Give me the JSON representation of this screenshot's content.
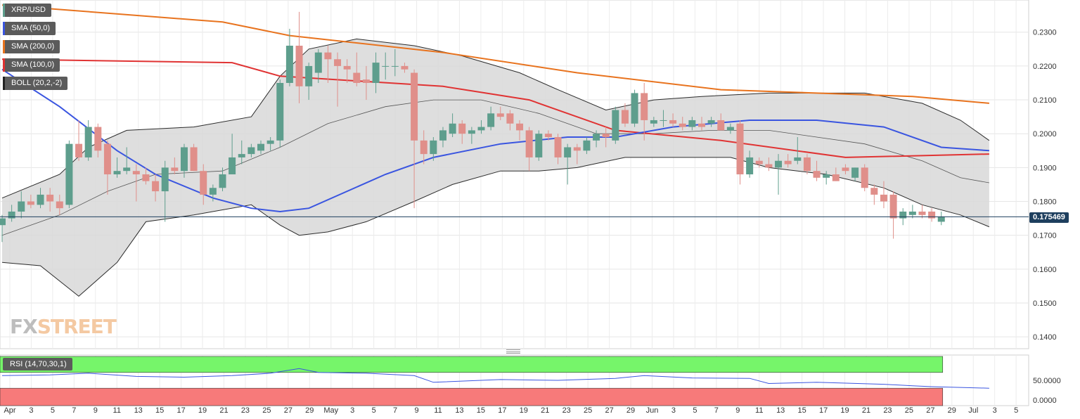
{
  "legend": {
    "symbol": "XRP/USD",
    "sma50": "SMA (50,0)",
    "sma200": "SMA (200,0)",
    "sma100": "SMA (100,0)",
    "boll": "BOLL (20,2,-2)"
  },
  "rsi_label": "RSI (14,70,30,1)",
  "price_tag": "0.175469",
  "watermark": {
    "fx": "FX",
    "street": "STREET"
  },
  "colors": {
    "up": "#5e9e8d",
    "down": "#e08f8a",
    "up_dark": "#2e7d64",
    "down_dark": "#d95b52",
    "sma50": "#3a55e0",
    "sma100": "#e03333",
    "sma200": "#e8731e",
    "boll_fill": "#d8d8d8",
    "rsi_line": "#3a55e0",
    "rsi_overbought": "#76f56a",
    "rsi_oversold": "#f77a7a"
  },
  "chart_data": {
    "type": "candlestick",
    "symbol": "XRP/USD",
    "y_ticks": [
      "0.2300",
      "0.2200",
      "0.2100",
      "0.2000",
      "0.1900",
      "0.1800",
      "0.1700",
      "0.1600",
      "0.1500",
      "0.1400"
    ],
    "ylim": [
      0.1365,
      0.2395
    ],
    "current_price": 0.175469,
    "x_labels": [
      "Apr",
      "3",
      "5",
      "7",
      "9",
      "11",
      "13",
      "15",
      "17",
      "19",
      "21",
      "23",
      "25",
      "27",
      "29",
      "May",
      "3",
      "5",
      "7",
      "9",
      "11",
      "13",
      "15",
      "17",
      "19",
      "21",
      "23",
      "25",
      "27",
      "29",
      "Jun",
      "3",
      "5",
      "7",
      "9",
      "11",
      "13",
      "15",
      "17",
      "19",
      "21",
      "23",
      "25",
      "27",
      "29",
      "Jul",
      "3",
      "5"
    ],
    "candles": [
      {
        "o": 0.173,
        "h": 0.176,
        "l": 0.168,
        "c": 0.175
      },
      {
        "o": 0.175,
        "h": 0.179,
        "l": 0.174,
        "c": 0.177
      },
      {
        "o": 0.177,
        "h": 0.183,
        "l": 0.175,
        "c": 0.18
      },
      {
        "o": 0.18,
        "h": 0.182,
        "l": 0.178,
        "c": 0.179
      },
      {
        "o": 0.179,
        "h": 0.184,
        "l": 0.178,
        "c": 0.182
      },
      {
        "o": 0.182,
        "h": 0.184,
        "l": 0.177,
        "c": 0.18
      },
      {
        "o": 0.18,
        "h": 0.182,
        "l": 0.176,
        "c": 0.178
      },
      {
        "o": 0.179,
        "h": 0.198,
        "l": 0.178,
        "c": 0.197
      },
      {
        "o": 0.197,
        "h": 0.204,
        "l": 0.192,
        "c": 0.193
      },
      {
        "o": 0.193,
        "h": 0.204,
        "l": 0.192,
        "c": 0.202
      },
      {
        "o": 0.202,
        "h": 0.203,
        "l": 0.193,
        "c": 0.195
      },
      {
        "o": 0.197,
        "h": 0.198,
        "l": 0.182,
        "c": 0.188
      },
      {
        "o": 0.188,
        "h": 0.193,
        "l": 0.187,
        "c": 0.189
      },
      {
        "o": 0.189,
        "h": 0.196,
        "l": 0.188,
        "c": 0.19
      },
      {
        "o": 0.189,
        "h": 0.191,
        "l": 0.18,
        "c": 0.188
      },
      {
        "o": 0.188,
        "h": 0.19,
        "l": 0.185,
        "c": 0.186
      },
      {
        "o": 0.186,
        "h": 0.188,
        "l": 0.18,
        "c": 0.183
      },
      {
        "o": 0.183,
        "h": 0.192,
        "l": 0.174,
        "c": 0.19
      },
      {
        "o": 0.19,
        "h": 0.193,
        "l": 0.188,
        "c": 0.189
      },
      {
        "o": 0.189,
        "h": 0.197,
        "l": 0.187,
        "c": 0.196
      },
      {
        "o": 0.196,
        "h": 0.197,
        "l": 0.189,
        "c": 0.189
      },
      {
        "o": 0.189,
        "h": 0.191,
        "l": 0.179,
        "c": 0.182
      },
      {
        "o": 0.182,
        "h": 0.185,
        "l": 0.18,
        "c": 0.184
      },
      {
        "o": 0.184,
        "h": 0.19,
        "l": 0.183,
        "c": 0.188
      },
      {
        "o": 0.188,
        "h": 0.2,
        "l": 0.188,
        "c": 0.193
      },
      {
        "o": 0.193,
        "h": 0.198,
        "l": 0.191,
        "c": 0.194
      },
      {
        "o": 0.194,
        "h": 0.197,
        "l": 0.193,
        "c": 0.196
      },
      {
        "o": 0.195,
        "h": 0.198,
        "l": 0.194,
        "c": 0.197
      },
      {
        "o": 0.197,
        "h": 0.199,
        "l": 0.195,
        "c": 0.198
      },
      {
        "o": 0.198,
        "h": 0.216,
        "l": 0.196,
        "c": 0.215
      },
      {
        "o": 0.215,
        "h": 0.231,
        "l": 0.214,
        "c": 0.226
      },
      {
        "o": 0.226,
        "h": 0.236,
        "l": 0.209,
        "c": 0.214
      },
      {
        "o": 0.214,
        "h": 0.221,
        "l": 0.21,
        "c": 0.22
      },
      {
        "o": 0.218,
        "h": 0.225,
        "l": 0.215,
        "c": 0.224
      },
      {
        "o": 0.224,
        "h": 0.226,
        "l": 0.215,
        "c": 0.222
      },
      {
        "o": 0.222,
        "h": 0.224,
        "l": 0.208,
        "c": 0.22
      },
      {
        "o": 0.22,
        "h": 0.222,
        "l": 0.215,
        "c": 0.219
      },
      {
        "o": 0.218,
        "h": 0.224,
        "l": 0.214,
        "c": 0.215
      },
      {
        "o": 0.216,
        "h": 0.22,
        "l": 0.21,
        "c": 0.215
      },
      {
        "o": 0.215,
        "h": 0.224,
        "l": 0.212,
        "c": 0.221
      },
      {
        "o": 0.22,
        "h": 0.224,
        "l": 0.216,
        "c": 0.22
      },
      {
        "o": 0.22,
        "h": 0.225,
        "l": 0.217,
        "c": 0.22
      },
      {
        "o": 0.22,
        "h": 0.221,
        "l": 0.218,
        "c": 0.219
      },
      {
        "o": 0.218,
        "h": 0.219,
        "l": 0.178,
        "c": 0.198
      },
      {
        "o": 0.198,
        "h": 0.201,
        "l": 0.191,
        "c": 0.194
      },
      {
        "o": 0.194,
        "h": 0.199,
        "l": 0.192,
        "c": 0.198
      },
      {
        "o": 0.198,
        "h": 0.202,
        "l": 0.196,
        "c": 0.201
      },
      {
        "o": 0.2,
        "h": 0.206,
        "l": 0.199,
        "c": 0.203
      },
      {
        "o": 0.203,
        "h": 0.204,
        "l": 0.197,
        "c": 0.2
      },
      {
        "o": 0.2,
        "h": 0.202,
        "l": 0.197,
        "c": 0.201
      },
      {
        "o": 0.201,
        "h": 0.204,
        "l": 0.2,
        "c": 0.202
      },
      {
        "o": 0.202,
        "h": 0.208,
        "l": 0.201,
        "c": 0.206
      },
      {
        "o": 0.206,
        "h": 0.208,
        "l": 0.204,
        "c": 0.205
      },
      {
        "o": 0.206,
        "h": 0.207,
        "l": 0.201,
        "c": 0.203
      },
      {
        "o": 0.203,
        "h": 0.204,
        "l": 0.198,
        "c": 0.201
      },
      {
        "o": 0.201,
        "h": 0.202,
        "l": 0.189,
        "c": 0.193
      },
      {
        "o": 0.193,
        "h": 0.201,
        "l": 0.192,
        "c": 0.2
      },
      {
        "o": 0.2,
        "h": 0.201,
        "l": 0.198,
        "c": 0.199
      },
      {
        "o": 0.199,
        "h": 0.2,
        "l": 0.191,
        "c": 0.193
      },
      {
        "o": 0.193,
        "h": 0.197,
        "l": 0.185,
        "c": 0.196
      },
      {
        "o": 0.196,
        "h": 0.197,
        "l": 0.191,
        "c": 0.195
      },
      {
        "o": 0.195,
        "h": 0.199,
        "l": 0.194,
        "c": 0.198
      },
      {
        "o": 0.198,
        "h": 0.201,
        "l": 0.196,
        "c": 0.2
      },
      {
        "o": 0.2,
        "h": 0.202,
        "l": 0.196,
        "c": 0.199
      },
      {
        "o": 0.198,
        "h": 0.208,
        "l": 0.197,
        "c": 0.207
      },
      {
        "o": 0.207,
        "h": 0.209,
        "l": 0.202,
        "c": 0.203
      },
      {
        "o": 0.203,
        "h": 0.213,
        "l": 0.202,
        "c": 0.212
      },
      {
        "o": 0.212,
        "h": 0.215,
        "l": 0.198,
        "c": 0.204
      },
      {
        "o": 0.203,
        "h": 0.205,
        "l": 0.202,
        "c": 0.204
      },
      {
        "o": 0.204,
        "h": 0.207,
        "l": 0.202,
        "c": 0.204
      },
      {
        "o": 0.204,
        "h": 0.206,
        "l": 0.202,
        "c": 0.203
      },
      {
        "o": 0.203,
        "h": 0.205,
        "l": 0.201,
        "c": 0.202
      },
      {
        "o": 0.202,
        "h": 0.205,
        "l": 0.201,
        "c": 0.204
      },
      {
        "o": 0.203,
        "h": 0.205,
        "l": 0.201,
        "c": 0.202
      },
      {
        "o": 0.203,
        "h": 0.205,
        "l": 0.202,
        "c": 0.204
      },
      {
        "o": 0.204,
        "h": 0.206,
        "l": 0.201,
        "c": 0.201
      },
      {
        "o": 0.201,
        "h": 0.203,
        "l": 0.2,
        "c": 0.202
      },
      {
        "o": 0.203,
        "h": 0.204,
        "l": 0.185,
        "c": 0.188
      },
      {
        "o": 0.188,
        "h": 0.195,
        "l": 0.187,
        "c": 0.193
      },
      {
        "o": 0.192,
        "h": 0.193,
        "l": 0.19,
        "c": 0.191
      },
      {
        "o": 0.191,
        "h": 0.193,
        "l": 0.189,
        "c": 0.19
      },
      {
        "o": 0.19,
        "h": 0.194,
        "l": 0.182,
        "c": 0.192
      },
      {
        "o": 0.192,
        "h": 0.194,
        "l": 0.19,
        "c": 0.191
      },
      {
        "o": 0.192,
        "h": 0.199,
        "l": 0.191,
        "c": 0.193
      },
      {
        "o": 0.193,
        "h": 0.194,
        "l": 0.188,
        "c": 0.189
      },
      {
        "o": 0.189,
        "h": 0.192,
        "l": 0.186,
        "c": 0.187
      },
      {
        "o": 0.187,
        "h": 0.189,
        "l": 0.185,
        "c": 0.188
      },
      {
        "o": 0.188,
        "h": 0.19,
        "l": 0.186,
        "c": 0.186
      },
      {
        "o": 0.19,
        "h": 0.191,
        "l": 0.188,
        "c": 0.189
      },
      {
        "o": 0.187,
        "h": 0.19,
        "l": 0.186,
        "c": 0.19
      },
      {
        "o": 0.19,
        "h": 0.191,
        "l": 0.183,
        "c": 0.184
      },
      {
        "o": 0.184,
        "h": 0.185,
        "l": 0.179,
        "c": 0.182
      },
      {
        "o": 0.182,
        "h": 0.186,
        "l": 0.178,
        "c": 0.18
      },
      {
        "o": 0.182,
        "h": 0.183,
        "l": 0.169,
        "c": 0.175
      },
      {
        "o": 0.175,
        "h": 0.178,
        "l": 0.173,
        "c": 0.177
      },
      {
        "o": 0.176,
        "h": 0.179,
        "l": 0.175,
        "c": 0.177
      },
      {
        "o": 0.177,
        "h": 0.179,
        "l": 0.175,
        "c": 0.176
      },
      {
        "o": 0.177,
        "h": 0.178,
        "l": 0.174,
        "c": 0.175
      },
      {
        "o": 0.174,
        "h": 0.177,
        "l": 0.173,
        "c": 0.1755
      }
    ],
    "sma200": [
      [
        0,
        0.238
      ],
      [
        23,
        0.233
      ],
      [
        30,
        0.229
      ],
      [
        46,
        0.224
      ],
      [
        60,
        0.218
      ],
      [
        75,
        0.213
      ],
      [
        95,
        0.211
      ],
      [
        103,
        0.209
      ]
    ],
    "sma100": [
      [
        0,
        0.222
      ],
      [
        24,
        0.221
      ],
      [
        29,
        0.217
      ],
      [
        46,
        0.214
      ],
      [
        55,
        0.21
      ],
      [
        64,
        0.201
      ],
      [
        75,
        0.198
      ],
      [
        88,
        0.193
      ],
      [
        103,
        0.194
      ]
    ],
    "sma50": [
      [
        0,
        0.219
      ],
      [
        6,
        0.208
      ],
      [
        12,
        0.195
      ],
      [
        16,
        0.188
      ],
      [
        22,
        0.181
      ],
      [
        26,
        0.178
      ],
      [
        29,
        0.177
      ],
      [
        32,
        0.178
      ],
      [
        40,
        0.188
      ],
      [
        45,
        0.193
      ],
      [
        52,
        0.197
      ],
      [
        59,
        0.199
      ],
      [
        64,
        0.199
      ],
      [
        70,
        0.202
      ],
      [
        78,
        0.204
      ],
      [
        85,
        0.204
      ],
      [
        92,
        0.202
      ],
      [
        98,
        0.196
      ],
      [
        103,
        0.195
      ]
    ],
    "boll_upper": [
      [
        0,
        0.181
      ],
      [
        6,
        0.188
      ],
      [
        9,
        0.196
      ],
      [
        13,
        0.201
      ],
      [
        20,
        0.202
      ],
      [
        26,
        0.205
      ],
      [
        29,
        0.217
      ],
      [
        32,
        0.225
      ],
      [
        37,
        0.228
      ],
      [
        43,
        0.226
      ],
      [
        48,
        0.223
      ],
      [
        54,
        0.218
      ],
      [
        58,
        0.213
      ],
      [
        63,
        0.207
      ],
      [
        68,
        0.21
      ],
      [
        73,
        0.211
      ],
      [
        80,
        0.212
      ],
      [
        90,
        0.212
      ],
      [
        96,
        0.209
      ],
      [
        100,
        0.204
      ],
      [
        103,
        0.198
      ]
    ],
    "boll_middle": [
      [
        0,
        0.17
      ],
      [
        6,
        0.176
      ],
      [
        11,
        0.183
      ],
      [
        16,
        0.188
      ],
      [
        23,
        0.189
      ],
      [
        29,
        0.196
      ],
      [
        34,
        0.203
      ],
      [
        40,
        0.208
      ],
      [
        45,
        0.21
      ],
      [
        50,
        0.21
      ],
      [
        56,
        0.206
      ],
      [
        62,
        0.2
      ],
      [
        68,
        0.2
      ],
      [
        74,
        0.201
      ],
      [
        80,
        0.201
      ],
      [
        85,
        0.199
      ],
      [
        90,
        0.197
      ],
      [
        96,
        0.192
      ],
      [
        100,
        0.187
      ],
      [
        103,
        0.1855
      ]
    ],
    "boll_lower": [
      [
        0,
        0.162
      ],
      [
        4,
        0.161
      ],
      [
        8,
        0.152
      ],
      [
        12,
        0.162
      ],
      [
        15,
        0.174
      ],
      [
        20,
        0.176
      ],
      [
        26,
        0.179
      ],
      [
        29,
        0.173
      ],
      [
        31,
        0.17
      ],
      [
        34,
        0.171
      ],
      [
        38,
        0.174
      ],
      [
        43,
        0.18
      ],
      [
        47,
        0.185
      ],
      [
        52,
        0.189
      ],
      [
        56,
        0.189
      ],
      [
        60,
        0.19
      ],
      [
        65,
        0.193
      ],
      [
        71,
        0.193
      ],
      [
        76,
        0.193
      ],
      [
        80,
        0.19
      ],
      [
        86,
        0.188
      ],
      [
        92,
        0.184
      ],
      [
        96,
        0.179
      ],
      [
        100,
        0.176
      ],
      [
        103,
        0.1725
      ]
    ],
    "rsi": {
      "y_ticks": [
        "50.0000",
        "0.0000"
      ],
      "overbought": 70,
      "oversold": 30,
      "values": [
        [
          0,
          62
        ],
        [
          5,
          64
        ],
        [
          9,
          68
        ],
        [
          14,
          60
        ],
        [
          19,
          58
        ],
        [
          24,
          62
        ],
        [
          28,
          68
        ],
        [
          31,
          80
        ],
        [
          33,
          70
        ],
        [
          38,
          68
        ],
        [
          43,
          62
        ],
        [
          45,
          45
        ],
        [
          52,
          52
        ],
        [
          58,
          50
        ],
        [
          64,
          55
        ],
        [
          67,
          62
        ],
        [
          72,
          56
        ],
        [
          78,
          55
        ],
        [
          80,
          42
        ],
        [
          85,
          45
        ],
        [
          92,
          40
        ],
        [
          95,
          36
        ],
        [
          97,
          34
        ],
        [
          100,
          32
        ],
        [
          103,
          30
        ]
      ]
    }
  }
}
